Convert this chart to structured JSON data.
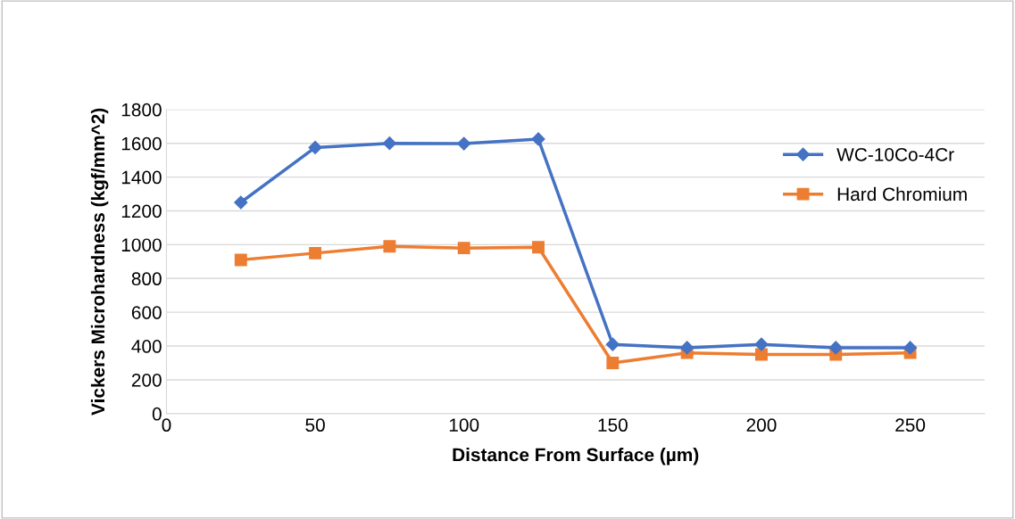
{
  "chart_data": {
    "type": "line",
    "xlabel": "Distance From Surface (µm)",
    "ylabel": "Vickers Microhardness (kgf/mm^2)",
    "x": [
      25,
      50,
      75,
      100,
      125,
      150,
      175,
      200,
      225,
      250
    ],
    "series": [
      {
        "name": "WC-10Co-4Cr",
        "color": "#4472c4",
        "marker": "diamond",
        "values": [
          1250,
          1575,
          1600,
          1598,
          1625,
          410,
          390,
          410,
          390,
          390
        ]
      },
      {
        "name": "Hard Chromium",
        "color": "#ed7d31",
        "marker": "square",
        "values": [
          910,
          950,
          990,
          980,
          985,
          300,
          360,
          350,
          350,
          360
        ]
      }
    ],
    "xlim": [
      0,
      275
    ],
    "xticks": [
      0,
      50,
      100,
      150,
      200,
      250
    ],
    "ylim": [
      0,
      1800
    ],
    "yticks": [
      0,
      200,
      400,
      600,
      800,
      1000,
      1200,
      1400,
      1600,
      1800
    ],
    "grid": "y",
    "legend": "upper right",
    "line_style": "solid"
  }
}
